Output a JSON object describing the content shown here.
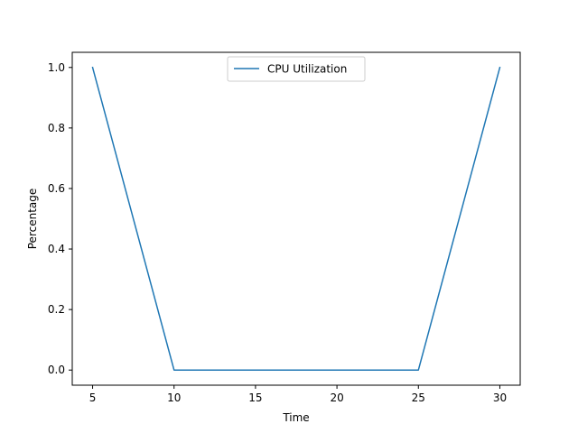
{
  "chart_data": {
    "type": "line",
    "title": "",
    "xlabel": "Time",
    "ylabel": "Percentage",
    "xlim": [
      3.75,
      31.25
    ],
    "ylim": [
      -0.05,
      1.05
    ],
    "xticks": [
      5,
      10,
      15,
      20,
      25,
      30
    ],
    "yticks": [
      0.0,
      0.2,
      0.4,
      0.6,
      0.8,
      1.0
    ],
    "xtick_labels": [
      "5",
      "10",
      "15",
      "20",
      "25",
      "30"
    ],
    "ytick_labels": [
      "0.0",
      "0.2",
      "0.4",
      "0.6",
      "0.8",
      "1.0"
    ],
    "grid": false,
    "legend_position": "top-center",
    "series": [
      {
        "name": "CPU Utilization",
        "color": "#1f77b4",
        "x": [
          5,
          10,
          15,
          20,
          25,
          30
        ],
        "y": [
          1.0,
          0.0,
          0.0,
          0.0,
          0.0,
          1.0
        ]
      }
    ]
  }
}
